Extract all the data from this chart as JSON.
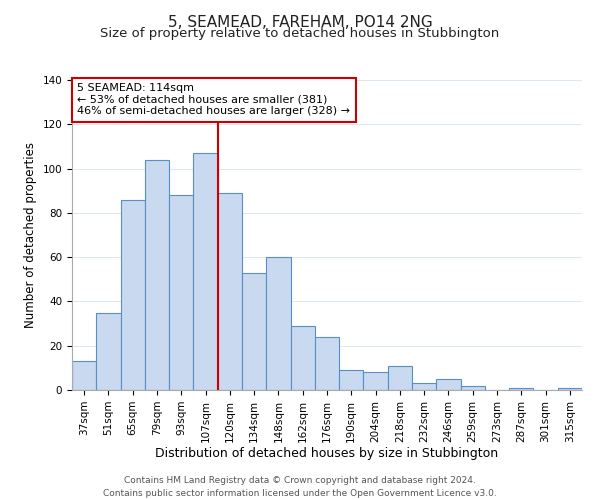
{
  "title": "5, SEAMEAD, FAREHAM, PO14 2NG",
  "subtitle": "Size of property relative to detached houses in Stubbington",
  "xlabel": "Distribution of detached houses by size in Stubbington",
  "ylabel": "Number of detached properties",
  "bar_labels": [
    "37sqm",
    "51sqm",
    "65sqm",
    "79sqm",
    "93sqm",
    "107sqm",
    "120sqm",
    "134sqm",
    "148sqm",
    "162sqm",
    "176sqm",
    "190sqm",
    "204sqm",
    "218sqm",
    "232sqm",
    "246sqm",
    "259sqm",
    "273sqm",
    "287sqm",
    "301sqm",
    "315sqm"
  ],
  "bar_values": [
    13,
    35,
    86,
    104,
    88,
    107,
    89,
    53,
    60,
    29,
    24,
    9,
    8,
    11,
    3,
    5,
    2,
    0,
    1,
    0,
    1
  ],
  "bar_color": "#c8d9f0",
  "bar_edge_color": "#5a8fc4",
  "vline_color": "#cc0000",
  "ylim": [
    0,
    140
  ],
  "annotation_title": "5 SEAMEAD: 114sqm",
  "annotation_line1": "← 53% of detached houses are smaller (381)",
  "annotation_line2": "46% of semi-detached houses are larger (328) →",
  "annotation_box_color": "#ffffff",
  "annotation_box_edge": "#cc0000",
  "footer1": "Contains HM Land Registry data © Crown copyright and database right 2024.",
  "footer2": "Contains public sector information licensed under the Open Government Licence v3.0.",
  "title_fontsize": 11,
  "subtitle_fontsize": 9.5,
  "xlabel_fontsize": 9,
  "ylabel_fontsize": 8.5,
  "tick_fontsize": 7.5,
  "annotation_fontsize": 8,
  "footer_fontsize": 6.5
}
